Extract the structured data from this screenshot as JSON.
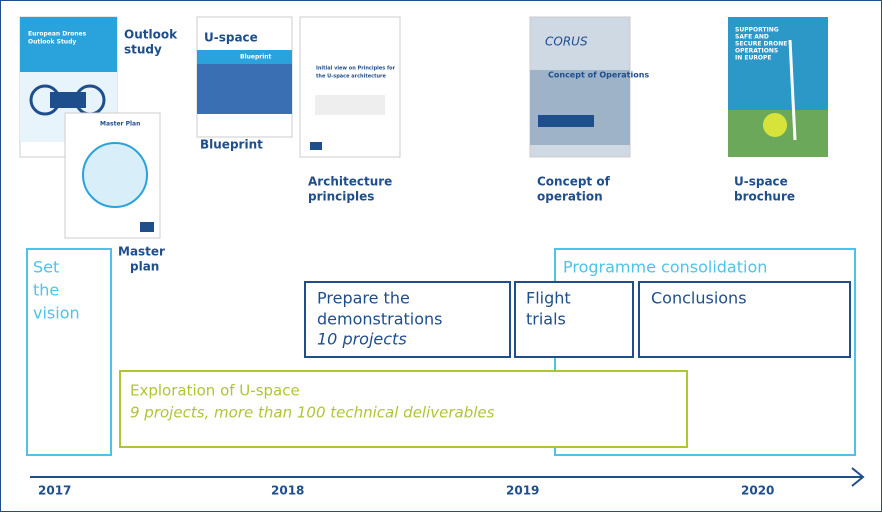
{
  "documents": [
    {
      "label": [
        "Outlook",
        "study"
      ],
      "cover": [
        "European Drones",
        "Outlook Study"
      ]
    },
    {
      "label": [
        "Master",
        "plan"
      ],
      "cover": [
        "Master Plan"
      ]
    },
    {
      "label": [
        "Blueprint"
      ],
      "cover": [
        "U-space",
        "Blueprint"
      ]
    },
    {
      "label": [
        "Architecture",
        "principles"
      ],
      "cover": [
        "Initial view on Principles for",
        "the U-space architecture"
      ]
    },
    {
      "label": [
        "Concept of",
        "operation"
      ],
      "cover": [
        "CORUS",
        "Concept of Operations"
      ]
    },
    {
      "label": [
        "U-space",
        "brochure"
      ],
      "cover": [
        "SUPPORTING",
        "SAFE AND",
        "SECURE DRONE",
        "OPERATIONS",
        "IN EUROPE"
      ]
    }
  ],
  "phases": [
    {
      "title": [
        "Set",
        "the",
        "vision"
      ]
    },
    {
      "title": [
        "Programme consolidation"
      ]
    },
    {
      "title": [
        "Prepare the",
        "demonstrations"
      ],
      "detail": "10 projects"
    },
    {
      "title": [
        "Flight",
        "trials"
      ]
    },
    {
      "title": [
        "Conclusions"
      ]
    },
    {
      "title": [
        "Exploration of U-space"
      ],
      "detail": "9 projects, more than 100 technical deliverables"
    }
  ],
  "timeline": {
    "years": [
      "2017",
      "2018",
      "2019",
      "2020"
    ]
  }
}
